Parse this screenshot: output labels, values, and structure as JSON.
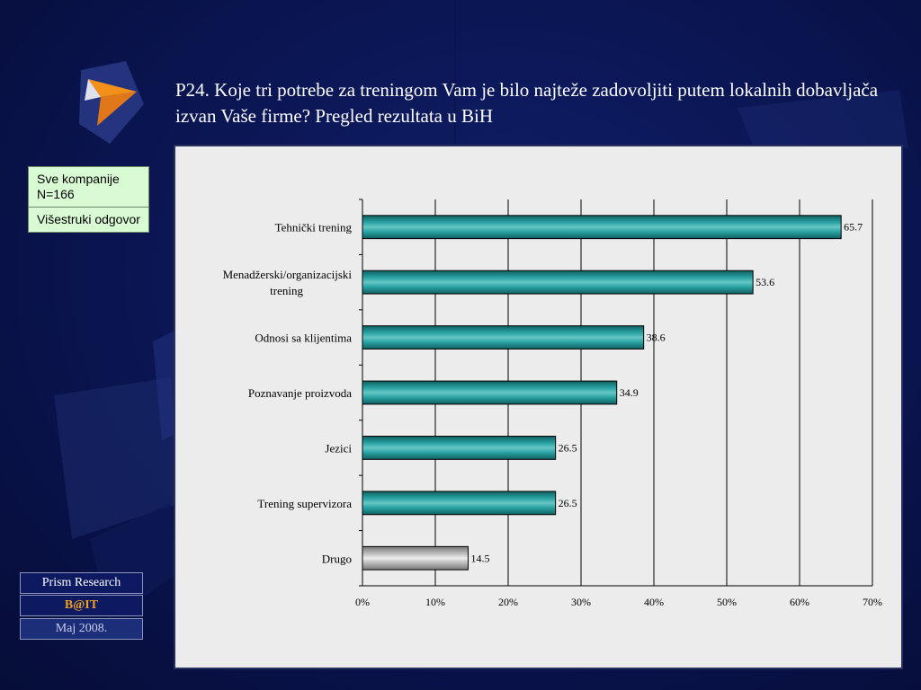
{
  "slide": {
    "title": "P24. Koje tri potrebe za treningom Vam je bilo najteže zadovoljiti putem lokalnih dobavljača izvan Vaše firme? Pregled rezultata u BiH"
  },
  "info_box": {
    "line1": "Sve kompanije N=166",
    "line2": "Višestruki odgovor"
  },
  "footer": {
    "company": "Prism Research",
    "program": "B@IT",
    "date": "Maj 2008."
  },
  "colors": {
    "bar_main": "#1e8c8c",
    "bar_other": "#a9a9a9",
    "info_bg": "#d9fbd3",
    "footer_program": "#f0a020"
  },
  "chart_data": {
    "type": "bar",
    "orientation": "horizontal",
    "categories": [
      "Tehnički trening",
      "Menadžerski/organizacijski trening",
      "Odnosi sa klijentima",
      "Poznavanje proizvoda",
      "Jezici",
      "Trening supervizora",
      "Drugo"
    ],
    "values": [
      65.7,
      53.6,
      38.6,
      34.9,
      26.5,
      26.5,
      14.5
    ],
    "value_labels": [
      "65.7",
      "53.6",
      "38.6",
      "34.9",
      "26.5",
      "26.5",
      "14.5"
    ],
    "xlim": [
      0,
      70
    ],
    "xticks": [
      "0%",
      "10%",
      "20%",
      "30%",
      "40%",
      "50%",
      "60%",
      "70%"
    ],
    "grid": true,
    "legend": "none"
  }
}
